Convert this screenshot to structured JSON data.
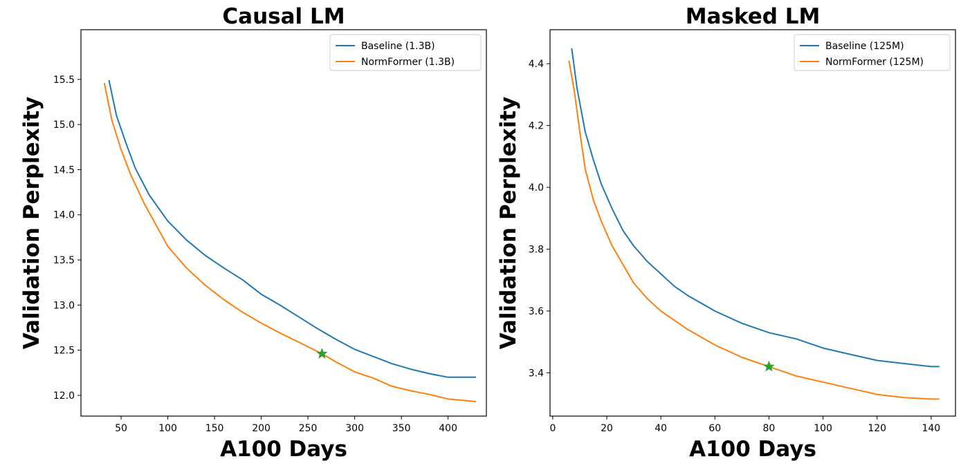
{
  "chart_data": [
    {
      "type": "line",
      "title": "Causal LM",
      "xlabel": "A100 Days",
      "ylabel": "Validation Perplexity",
      "xlim": [
        7,
        441
      ],
      "ylim": [
        11.77,
        16.05
      ],
      "xticks": [
        50,
        100,
        150,
        200,
        250,
        300,
        350,
        400
      ],
      "yticks": [
        12.0,
        12.5,
        13.0,
        13.5,
        14.0,
        14.5,
        15.0,
        15.5
      ],
      "ytick_labels": [
        "12.0",
        "12.5",
        "13.0",
        "13.5",
        "14.0",
        "14.5",
        "15.0",
        "15.5"
      ],
      "grid": false,
      "legend_position": "top-right",
      "series": [
        {
          "name": "Baseline (1.3B)",
          "color": "#1f77b4",
          "x": [
            37,
            45,
            55,
            65,
            80,
            100,
            120,
            140,
            160,
            180,
            200,
            220,
            240,
            260,
            280,
            300,
            320,
            340,
            360,
            380,
            400,
            410,
            420,
            430
          ],
          "y": [
            15.49,
            15.1,
            14.8,
            14.52,
            14.22,
            13.93,
            13.72,
            13.55,
            13.41,
            13.28,
            13.12,
            13.0,
            12.87,
            12.74,
            12.62,
            12.51,
            12.43,
            12.35,
            12.29,
            12.24,
            12.2,
            12.2,
            12.2,
            12.2
          ]
        },
        {
          "name": "NormFormer (1.3B)",
          "color": "#ff7f0e",
          "x": [
            32,
            40,
            50,
            60,
            75,
            100,
            120,
            140,
            160,
            180,
            200,
            220,
            240,
            265,
            280,
            300,
            320,
            340,
            360,
            380,
            400,
            420,
            430
          ],
          "y": [
            15.46,
            15.05,
            14.72,
            14.45,
            14.12,
            13.65,
            13.41,
            13.22,
            13.06,
            12.92,
            12.8,
            12.69,
            12.59,
            12.46,
            12.37,
            12.26,
            12.19,
            12.1,
            12.05,
            12.01,
            11.96,
            11.94,
            11.93
          ]
        }
      ],
      "marker": {
        "x": 265,
        "y": 12.46,
        "symbol": "star",
        "color": "#2ca02c"
      }
    },
    {
      "type": "line",
      "title": "Masked LM",
      "xlabel": "A100 Days",
      "ylabel": "Validation Perplexity",
      "xlim": [
        -1,
        149
      ],
      "ylim": [
        3.26,
        4.51
      ],
      "xticks": [
        0,
        20,
        40,
        60,
        80,
        100,
        120,
        140
      ],
      "yticks": [
        3.4,
        3.6,
        3.8,
        4.0,
        4.2,
        4.4
      ],
      "ytick_labels": [
        "3.4",
        "3.6",
        "3.8",
        "4.0",
        "4.2",
        "4.4"
      ],
      "grid": false,
      "legend_position": "top-right",
      "series": [
        {
          "name": "Baseline (125M)",
          "color": "#1f77b4",
          "x": [
            7,
            9,
            12,
            15,
            18,
            22,
            26,
            30,
            35,
            40,
            45,
            50,
            60,
            70,
            80,
            90,
            100,
            110,
            120,
            130,
            140,
            143
          ],
          "y": [
            4.45,
            4.32,
            4.18,
            4.09,
            4.01,
            3.93,
            3.86,
            3.81,
            3.76,
            3.72,
            3.68,
            3.65,
            3.6,
            3.56,
            3.53,
            3.51,
            3.48,
            3.46,
            3.44,
            3.43,
            3.42,
            3.42
          ]
        },
        {
          "name": "NormFormer (125M)",
          "color": "#ff7f0e",
          "x": [
            6,
            8,
            10,
            12,
            15,
            18,
            22,
            26,
            30,
            35,
            40,
            50,
            60,
            70,
            80,
            90,
            100,
            110,
            115,
            120,
            130,
            140,
            143
          ],
          "y": [
            4.41,
            4.31,
            4.18,
            4.06,
            3.96,
            3.89,
            3.81,
            3.75,
            3.69,
            3.64,
            3.6,
            3.54,
            3.49,
            3.45,
            3.42,
            3.39,
            3.37,
            3.35,
            3.34,
            3.33,
            3.32,
            3.315,
            3.315
          ]
        }
      ],
      "marker": {
        "x": 80,
        "y": 3.42,
        "symbol": "star",
        "color": "#2ca02c"
      }
    }
  ]
}
